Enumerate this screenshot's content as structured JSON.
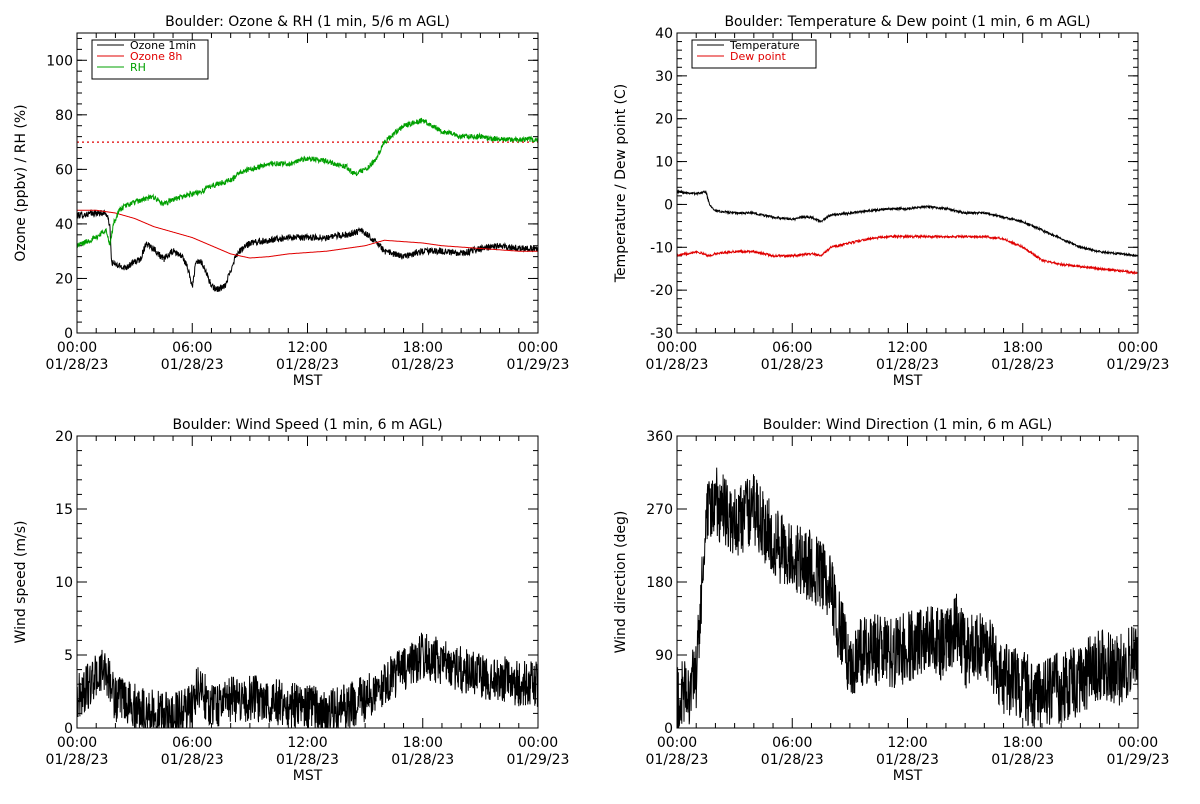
{
  "chart_data": [
    {
      "type": "line",
      "title": "Boulder: Ozone & RH (1 min, 5/6 m AGL)",
      "xlabel": "MST",
      "ylabel": "Ozone (ppbv) / RH (%)",
      "xlim": [
        0,
        24
      ],
      "ylim": [
        0,
        110
      ],
      "yticks": [
        0,
        20,
        40,
        60,
        80,
        100
      ],
      "x_tick_labels": [
        {
          "time": "00:00",
          "date": "01/28/23"
        },
        {
          "time": "06:00",
          "date": "01/28/23"
        },
        {
          "time": "12:00",
          "date": "01/28/23"
        },
        {
          "time": "18:00",
          "date": "01/28/23"
        },
        {
          "time": "00:00",
          "date": "01/29/23"
        }
      ],
      "legend": "top-left",
      "reference_line": {
        "y": 70,
        "color": "#e00000",
        "style": "dotted"
      },
      "series": [
        {
          "name": "Ozone 1min",
          "color": "#000000",
          "noise": 1.2,
          "points": [
            [
              0,
              43
            ],
            [
              1,
              44
            ],
            [
              1.5,
              44
            ],
            [
              1.7,
              40
            ],
            [
              1.8,
              26
            ],
            [
              2,
              25
            ],
            [
              2.5,
              24
            ],
            [
              3,
              26
            ],
            [
              3.3,
              27
            ],
            [
              3.6,
              33
            ],
            [
              4,
              31
            ],
            [
              4.5,
              27
            ],
            [
              5,
              30
            ],
            [
              5.5,
              28
            ],
            [
              5.8,
              23
            ],
            [
              6,
              17
            ],
            [
              6.2,
              26
            ],
            [
              6.5,
              26
            ],
            [
              6.8,
              21
            ],
            [
              7,
              17
            ],
            [
              7.3,
              16
            ],
            [
              7.7,
              17
            ],
            [
              8,
              23
            ],
            [
              8.3,
              29
            ],
            [
              9,
              33
            ],
            [
              10,
              34
            ],
            [
              11,
              35
            ],
            [
              12,
              35
            ],
            [
              13,
              35
            ],
            [
              14,
              36
            ],
            [
              14.8,
              37.5
            ],
            [
              15.5,
              34
            ],
            [
              16,
              30
            ],
            [
              17,
              28
            ],
            [
              18,
              30
            ],
            [
              19,
              30
            ],
            [
              20,
              29
            ],
            [
              21,
              31
            ],
            [
              22,
              32
            ],
            [
              23,
              31
            ],
            [
              24,
              31
            ]
          ]
        },
        {
          "name": "Ozone 8h",
          "color": "#e00000",
          "noise": 0,
          "points": [
            [
              0,
              45
            ],
            [
              1,
              45
            ],
            [
              2,
              44
            ],
            [
              3,
              42
            ],
            [
              4,
              39
            ],
            [
              5,
              37
            ],
            [
              6,
              35
            ],
            [
              7,
              32
            ],
            [
              8,
              29
            ],
            [
              9,
              27.5
            ],
            [
              10,
              28
            ],
            [
              11,
              29
            ],
            [
              12,
              29.5
            ],
            [
              13,
              30
            ],
            [
              14,
              31
            ],
            [
              15,
              32
            ],
            [
              16,
              34
            ],
            [
              17,
              33.5
            ],
            [
              18,
              33
            ],
            [
              19,
              32
            ],
            [
              20,
              31.5
            ],
            [
              21,
              31
            ],
            [
              22,
              30.5
            ],
            [
              23,
              30
            ],
            [
              24,
              30
            ]
          ]
        },
        {
          "name": "RH",
          "color": "#00a000",
          "noise": 1.0,
          "points": [
            [
              0,
              32
            ],
            [
              1,
              35
            ],
            [
              1.5,
              38
            ],
            [
              1.7,
              32
            ],
            [
              1.9,
              40
            ],
            [
              2.2,
              45
            ],
            [
              2.6,
              47
            ],
            [
              3,
              48
            ],
            [
              3.5,
              49
            ],
            [
              4,
              50
            ],
            [
              4.5,
              47
            ],
            [
              5,
              49
            ],
            [
              6,
              51
            ],
            [
              6.5,
              52
            ],
            [
              7,
              54
            ],
            [
              7.5,
              55
            ],
            [
              8,
              56
            ],
            [
              8.5,
              59
            ],
            [
              9,
              60
            ],
            [
              10,
              62
            ],
            [
              11,
              62
            ],
            [
              12,
              64
            ],
            [
              13,
              63
            ],
            [
              14,
              61
            ],
            [
              14.5,
              58
            ],
            [
              15,
              60
            ],
            [
              15.5,
              63
            ],
            [
              16,
              70
            ],
            [
              17,
              76
            ],
            [
              18,
              78
            ],
            [
              18.5,
              76
            ],
            [
              19,
              74
            ],
            [
              20,
              72
            ],
            [
              21,
              72
            ],
            [
              22,
              71
            ],
            [
              23,
              71
            ],
            [
              24,
              71
            ]
          ]
        }
      ]
    },
    {
      "type": "line",
      "title": "Boulder: Temperature & Dew point (1 min, 6 m AGL)",
      "xlabel": "MST",
      "ylabel": "Temperature / Dew point (C)",
      "xlim": [
        0,
        24
      ],
      "ylim": [
        -30,
        40
      ],
      "yticks": [
        -30,
        -20,
        -10,
        0,
        10,
        20,
        30,
        40
      ],
      "x_tick_labels": [
        {
          "time": "00:00",
          "date": "01/28/23"
        },
        {
          "time": "06:00",
          "date": "01/28/23"
        },
        {
          "time": "12:00",
          "date": "01/28/23"
        },
        {
          "time": "18:00",
          "date": "01/28/23"
        },
        {
          "time": "00:00",
          "date": "01/29/23"
        }
      ],
      "legend": "top-left",
      "series": [
        {
          "name": "Temperature",
          "color": "#000000",
          "noise": 0.25,
          "points": [
            [
              0,
              3
            ],
            [
              1,
              2.5
            ],
            [
              1.5,
              3
            ],
            [
              1.7,
              0
            ],
            [
              2,
              -1.5
            ],
            [
              3,
              -2
            ],
            [
              4,
              -2
            ],
            [
              5,
              -3
            ],
            [
              6,
              -3.5
            ],
            [
              6.5,
              -3
            ],
            [
              7,
              -3
            ],
            [
              7.5,
              -4
            ],
            [
              8,
              -2.5
            ],
            [
              9,
              -2
            ],
            [
              10,
              -1.5
            ],
            [
              11,
              -1
            ],
            [
              12,
              -1
            ],
            [
              13,
              -0.5
            ],
            [
              14,
              -1
            ],
            [
              15,
              -2
            ],
            [
              16,
              -2
            ],
            [
              17,
              -3
            ],
            [
              18,
              -4
            ],
            [
              19,
              -6
            ],
            [
              20,
              -8
            ],
            [
              21,
              -10
            ],
            [
              22,
              -11
            ],
            [
              23,
              -11.5
            ],
            [
              24,
              -12
            ]
          ]
        },
        {
          "name": "Dew point",
          "color": "#e00000",
          "noise": 0.25,
          "points": [
            [
              0,
              -12
            ],
            [
              1,
              -11
            ],
            [
              1.7,
              -12
            ],
            [
              2,
              -11.5
            ],
            [
              3,
              -11
            ],
            [
              4,
              -11
            ],
            [
              5,
              -12
            ],
            [
              6,
              -12
            ],
            [
              7,
              -11.5
            ],
            [
              7.5,
              -12
            ],
            [
              8,
              -10
            ],
            [
              9,
              -9
            ],
            [
              10,
              -8
            ],
            [
              11,
              -7.5
            ],
            [
              12,
              -7.5
            ],
            [
              13,
              -7.5
            ],
            [
              14,
              -7.5
            ],
            [
              15,
              -7.5
            ],
            [
              16,
              -7.5
            ],
            [
              17,
              -8
            ],
            [
              18,
              -10
            ],
            [
              19,
              -13
            ],
            [
              20,
              -14
            ],
            [
              21,
              -14.5
            ],
            [
              22,
              -15
            ],
            [
              23,
              -15.5
            ],
            [
              24,
              -16
            ]
          ]
        }
      ]
    },
    {
      "type": "line",
      "title": "Boulder: Wind Speed (1 min, 6 m AGL)",
      "xlabel": "MST",
      "ylabel": "Wind speed (m/s)",
      "xlim": [
        0,
        24
      ],
      "ylim": [
        0,
        20
      ],
      "yticks": [
        0,
        5,
        10,
        15,
        20
      ],
      "x_tick_labels": [
        {
          "time": "00:00",
          "date": "01/28/23"
        },
        {
          "time": "06:00",
          "date": "01/28/23"
        },
        {
          "time": "12:00",
          "date": "01/28/23"
        },
        {
          "time": "18:00",
          "date": "01/28/23"
        },
        {
          "time": "00:00",
          "date": "01/29/23"
        }
      ],
      "series": [
        {
          "name": "",
          "color": "#000000",
          "noise": 1.6,
          "min": 0,
          "points": [
            [
              0,
              2
            ],
            [
              1,
              3.5
            ],
            [
              1.5,
              4
            ],
            [
              2,
              2
            ],
            [
              3,
              1.5
            ],
            [
              4,
              1
            ],
            [
              5,
              0.8
            ],
            [
              6,
              1.5
            ],
            [
              6.3,
              3
            ],
            [
              7,
              1.5
            ],
            [
              8,
              2
            ],
            [
              9,
              2
            ],
            [
              10,
              2
            ],
            [
              11,
              1.5
            ],
            [
              12,
              1.5
            ],
            [
              13,
              1
            ],
            [
              14,
              1.5
            ],
            [
              15,
              2
            ],
            [
              16,
              3
            ],
            [
              17,
              4
            ],
            [
              18,
              5
            ],
            [
              19,
              4.5
            ],
            [
              20,
              4
            ],
            [
              21,
              3.5
            ],
            [
              22,
              3.5
            ],
            [
              23,
              3
            ],
            [
              24,
              3
            ]
          ]
        }
      ]
    },
    {
      "type": "line",
      "title": "Boulder: Wind Direction (1 min, 6 m AGL)",
      "xlabel": "MST",
      "ylabel": "Wind direction (deg)",
      "xlim": [
        0,
        24
      ],
      "ylim": [
        0,
        360
      ],
      "yticks": [
        0,
        90,
        180,
        270,
        360
      ],
      "x_tick_labels": [
        {
          "time": "00:00",
          "date": "01/28/23"
        },
        {
          "time": "06:00",
          "date": "01/28/23"
        },
        {
          "time": "12:00",
          "date": "01/28/23"
        },
        {
          "time": "18:00",
          "date": "01/28/23"
        },
        {
          "time": "00:00",
          "date": "01/29/23"
        }
      ],
      "series": [
        {
          "name": "",
          "color": "#000000",
          "noise": 45,
          "min": 0,
          "max": 360,
          "points": [
            [
              0,
              30
            ],
            [
              1,
              60
            ],
            [
              1.5,
              250
            ],
            [
              2,
              280
            ],
            [
              3,
              250
            ],
            [
              4,
              270
            ],
            [
              5,
              230
            ],
            [
              6,
              210
            ],
            [
              7,
              200
            ],
            [
              7.5,
              190
            ],
            [
              8,
              170
            ],
            [
              8.5,
              120
            ],
            [
              9,
              80
            ],
            [
              10,
              100
            ],
            [
              11,
              90
            ],
            [
              12,
              100
            ],
            [
              13,
              110
            ],
            [
              14,
              100
            ],
            [
              14.5,
              130
            ],
            [
              15,
              90
            ],
            [
              15.5,
              100
            ],
            [
              16,
              110
            ],
            [
              17,
              60
            ],
            [
              18,
              50
            ],
            [
              19,
              40
            ],
            [
              20,
              50
            ],
            [
              21,
              60
            ],
            [
              22,
              80
            ],
            [
              23,
              70
            ],
            [
              24,
              90
            ]
          ]
        }
      ]
    }
  ]
}
